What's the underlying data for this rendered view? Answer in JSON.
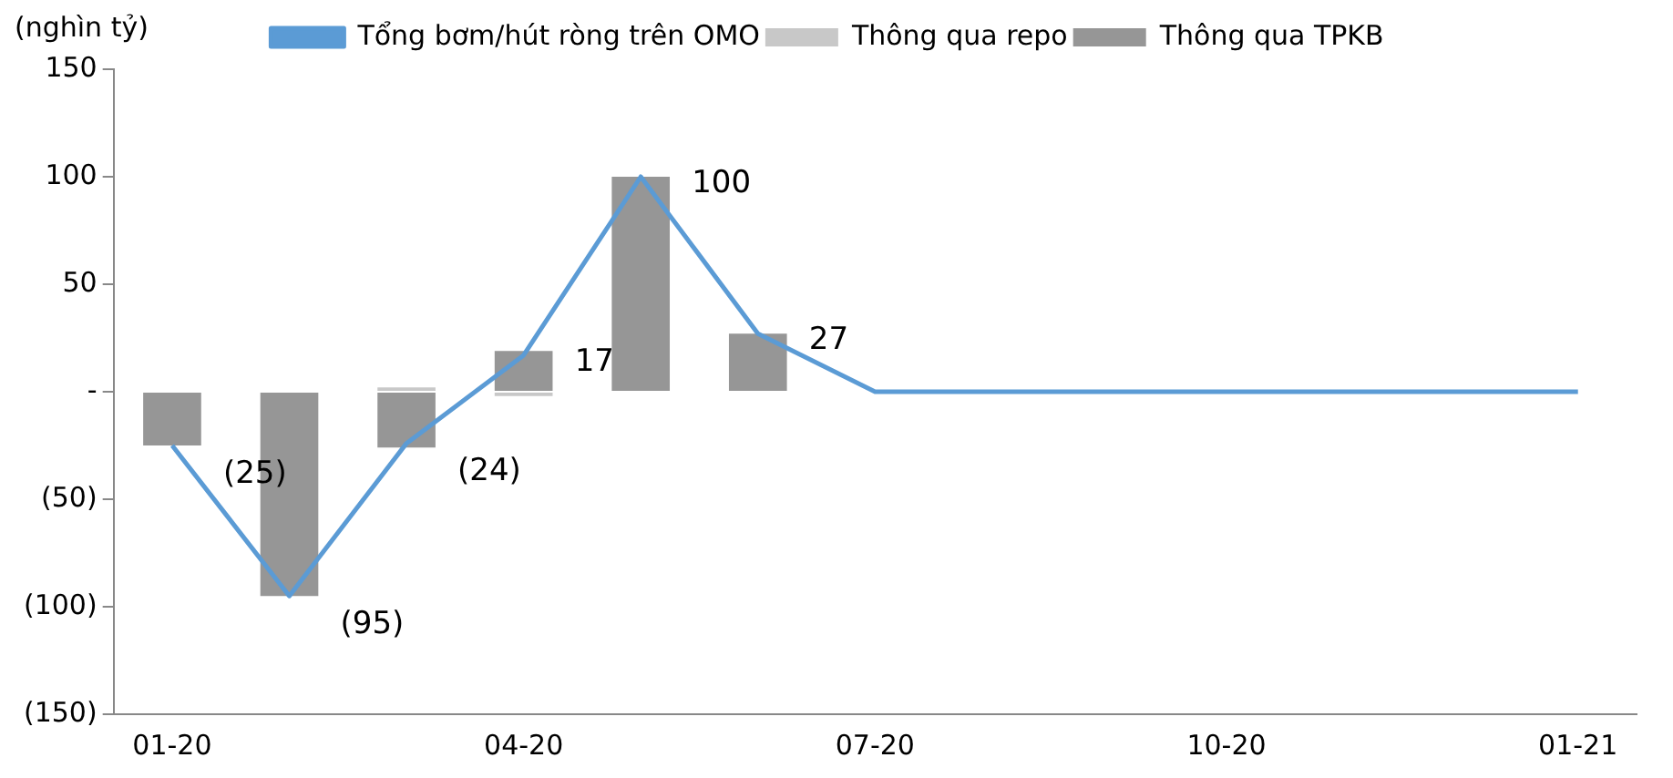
{
  "chart_data": {
    "type": "bar",
    "stacked": true,
    "ylabel": "(nghìn tỷ)",
    "categories": [
      "01-20",
      null,
      null,
      "04-20",
      null,
      null,
      "07-20",
      null,
      null,
      "10-20",
      null,
      null,
      "01-21"
    ],
    "series": [
      {
        "name": "Thông qua repo",
        "color": "#c8c8c8",
        "values": [
          0,
          0,
          2,
          -2,
          0,
          0,
          0,
          0,
          0,
          0,
          0,
          0,
          0
        ]
      },
      {
        "name": "Thông qua TPKB",
        "color": "#969696",
        "values": [
          -25,
          -95,
          -26,
          19,
          100,
          27,
          0,
          0,
          0,
          0,
          0,
          0,
          0
        ]
      },
      {
        "name": "Tổng bơm/hút ròng trên OMO",
        "type": "line",
        "color": "#5b9bd5",
        "values": [
          -25,
          -95,
          -24,
          17,
          100,
          27,
          0,
          0,
          0,
          0,
          0,
          0,
          0
        ],
        "value_labels": [
          "(25)",
          "(95)",
          "(24)",
          "17",
          "100",
          "27",
          null,
          null,
          null,
          null,
          null,
          null,
          null
        ]
      }
    ],
    "ylim": [
      -150,
      150
    ],
    "yticks": [
      150,
      100,
      50,
      {
        "value": 0,
        "label": "-"
      },
      {
        "value": -50,
        "label": "(50)"
      },
      {
        "value": -100,
        "label": "(100)"
      },
      {
        "value": -150,
        "label": "(150)"
      }
    ],
    "grid": false,
    "legend": "top",
    "marker": "none"
  }
}
